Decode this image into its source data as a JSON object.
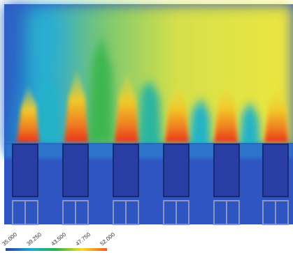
{
  "colorbar": {
    "ticks": [
      "35.000",
      "39.250",
      "43.500",
      "47.750",
      "52.000"
    ],
    "colors": [
      "#2a3fa0",
      "#1aa9d8",
      "#29b24a",
      "#f2e023",
      "#ef5a1f"
    ]
  },
  "palette": {
    "background": "#3b5fc0",
    "cool": "#1e5fc8",
    "mid": "#22b3c8",
    "green": "#39b54a",
    "yellow": "#e8e23a",
    "hot": "#f07f20",
    "block": "#2a3fa6",
    "grid": "#8b95c4"
  }
}
